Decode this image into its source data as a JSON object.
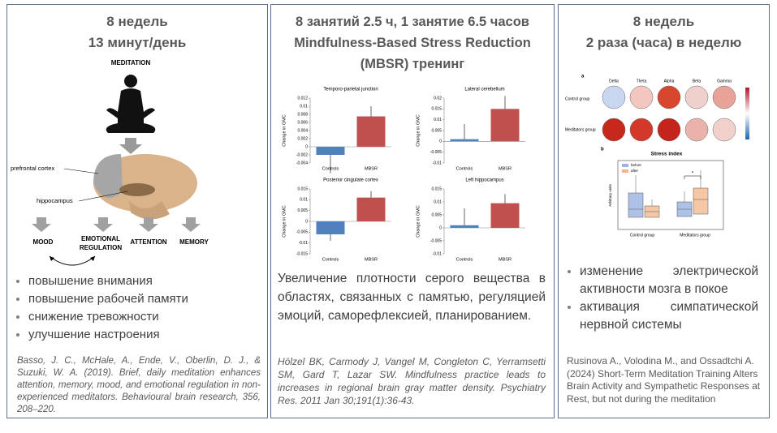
{
  "panels": [
    {
      "title_lines": [
        "8 недель",
        "13 минут/день"
      ],
      "figure": {
        "meditation": "MEDITATION",
        "prefrontal": "prefrontal cortex",
        "hippocampus": "hippocampus",
        "mood": "MOOD",
        "emotional": "EMOTIONAL",
        "regulation": "REGULATION",
        "attention": "ATTENTION",
        "memory": "MEMORY"
      },
      "bullets": [
        "повышение внимания",
        "повышение рабочей памяти",
        "снижение тревожности",
        "улучшение настроения"
      ],
      "citation": "Basso, J. C., McHale, A., Ende, V., Oberlin, D. J., & Suzuki, W. A. (2019). Brief, daily meditation enhances attention, memory, mood, and emotional regulation in non-experienced meditators. Behavioural brain research, 356, 208–220."
    },
    {
      "title_lines": [
        "8 занятий  2.5 ч, 1 занятие 6.5 часов",
        "Mindfulness-Based Stress Reduction",
        "(MBSR) тренинг"
      ],
      "charts": [
        {
          "type": "bar",
          "title": "Temporo-parietal junction",
          "y_label": "Change in GMC",
          "categories": [
            "Controls",
            "MBSR"
          ],
          "colors": [
            "#4f81bd",
            "#c0504d"
          ],
          "values": [
            -0.002,
            0.0075
          ],
          "errors": [
            0.0045,
            0.0025
          ],
          "ylim": [
            -0.004,
            0.012
          ],
          "yticks": [
            -0.004,
            -0.002,
            0,
            0.002,
            0.004,
            0.006,
            0.008,
            0.01,
            0.012
          ]
        },
        {
          "type": "bar",
          "title": "Lateral cerebellum",
          "y_label": "Change in GMC",
          "categories": [
            "Controls",
            "MBSR"
          ],
          "colors": [
            "#4f81bd",
            "#c0504d"
          ],
          "values": [
            0.001,
            0.015
          ],
          "errors": [
            0.007,
            0.006
          ],
          "ylim": [
            -0.01,
            0.02
          ],
          "yticks": [
            -0.01,
            -0.005,
            0,
            0.005,
            0.01,
            0.015,
            0.02
          ]
        },
        {
          "type": "bar",
          "title": "Posterior cingulate cortex",
          "y_label": "Change in GMC",
          "categories": [
            "Controls",
            "MBSR"
          ],
          "colors": [
            "#4f81bd",
            "#c0504d"
          ],
          "values": [
            -0.006,
            0.011
          ],
          "errors": [
            0.003,
            0.003
          ],
          "ylim": [
            -0.015,
            0.015
          ],
          "yticks": [
            -0.015,
            -0.01,
            -0.005,
            0,
            0.005,
            0.01,
            0.015
          ]
        },
        {
          "type": "bar",
          "title": "Left hippocampus",
          "y_label": "Change in GMC",
          "categories": [
            "Controls",
            "MBSR"
          ],
          "colors": [
            "#4f81bd",
            "#c0504d"
          ],
          "values": [
            0.001,
            0.0095
          ],
          "errors": [
            0.0065,
            0.0035
          ],
          "ylim": [
            -0.01,
            0.015
          ],
          "yticks": [
            -0.01,
            -0.005,
            0,
            0.005,
            0.01,
            0.015
          ]
        }
      ],
      "paragraph": "Увеличение плотности серого вещества в областях, связанных с памятью, регуляцией эмоций, саморефлексией, планированием.",
      "citation": "Hölzel BK, Carmody J, Vangel M, Congleton C, Yerramsetti SM, Gard T, Lazar SW. Mindfulness practice leads to increases in regional brain gray matter density. Psychiatry Res. 2011 Jan 30;191(1):36-43."
    },
    {
      "title_lines": [
        "8 недель",
        "2 раза (часа) в неделю"
      ],
      "figure": {
        "panel_a": "a",
        "bands": [
          "Delta",
          "Theta",
          "Alpha",
          "Beta",
          "Gamma"
        ],
        "rows": [
          "Control group",
          "Meditators group"
        ],
        "panel_b": "b",
        "box_title": "Stress index",
        "legend": [
          "before",
          "after"
        ],
        "y_label": "Arbitrary units",
        "groups": [
          "Control group",
          "Meditators group"
        ]
      },
      "bullets": [
        "изменение электрической активности мозга в покое",
        "активация симпатической нервной системы"
      ],
      "citation": "Rusinova A., Volodina M., and Ossadtchi A. (2024) Short-Term Meditation Training Alters Brain Activity and Sympathetic Responses at Rest, but not during the meditation"
    }
  ]
}
